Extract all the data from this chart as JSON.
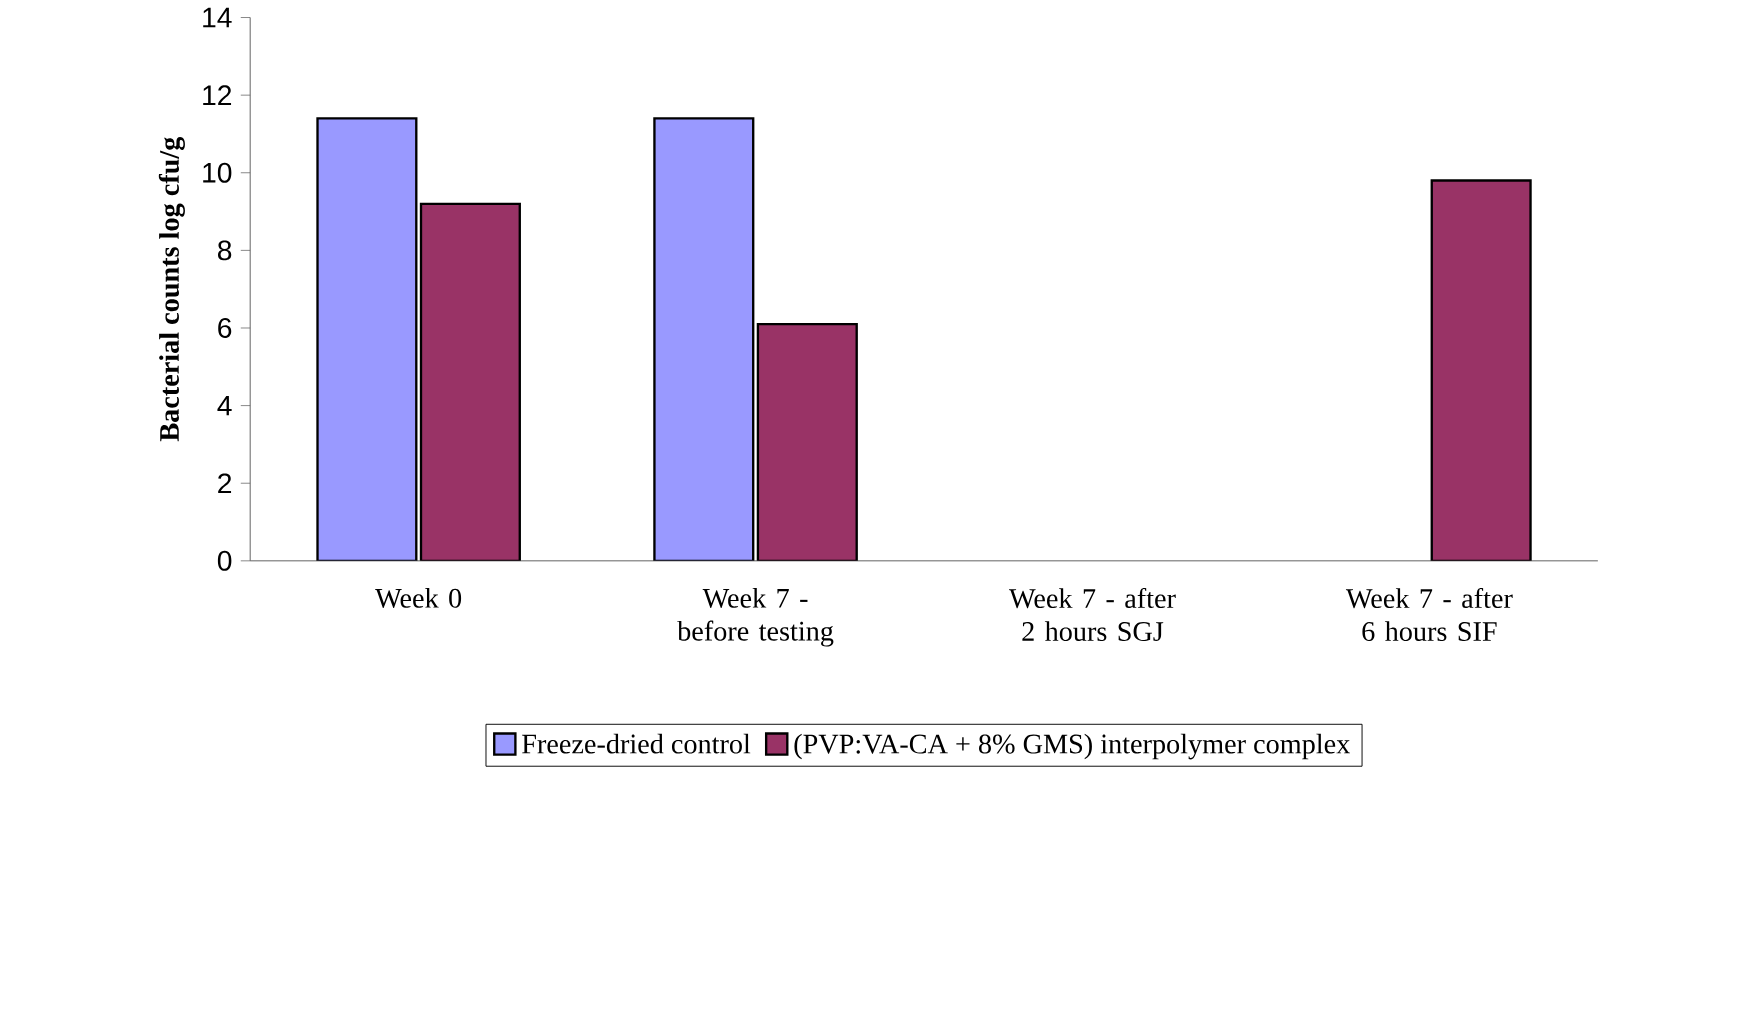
{
  "chart_data": {
    "type": "bar",
    "ylabel": "Bacterial counts log cfu/g",
    "categories": [
      "Week 0",
      "Week 7 - before testing",
      "Week 7 - after 2 hours SGJ",
      "Week 7 - after 6 hours SIF"
    ],
    "series": [
      {
        "name": "Freeze-dried control",
        "color": "#9999ff",
        "values": [
          11.4,
          11.4,
          null,
          null
        ]
      },
      {
        "name": "(PVP:VA-CA + 8% GMS) interpolymer complex",
        "color": "#993366",
        "values": [
          9.2,
          6.1,
          null,
          9.8
        ]
      }
    ],
    "ylim": [
      0,
      14
    ],
    "yticks": [
      0,
      2,
      4,
      6,
      8,
      10,
      12,
      14
    ],
    "grid": false,
    "legend": "bottom"
  }
}
